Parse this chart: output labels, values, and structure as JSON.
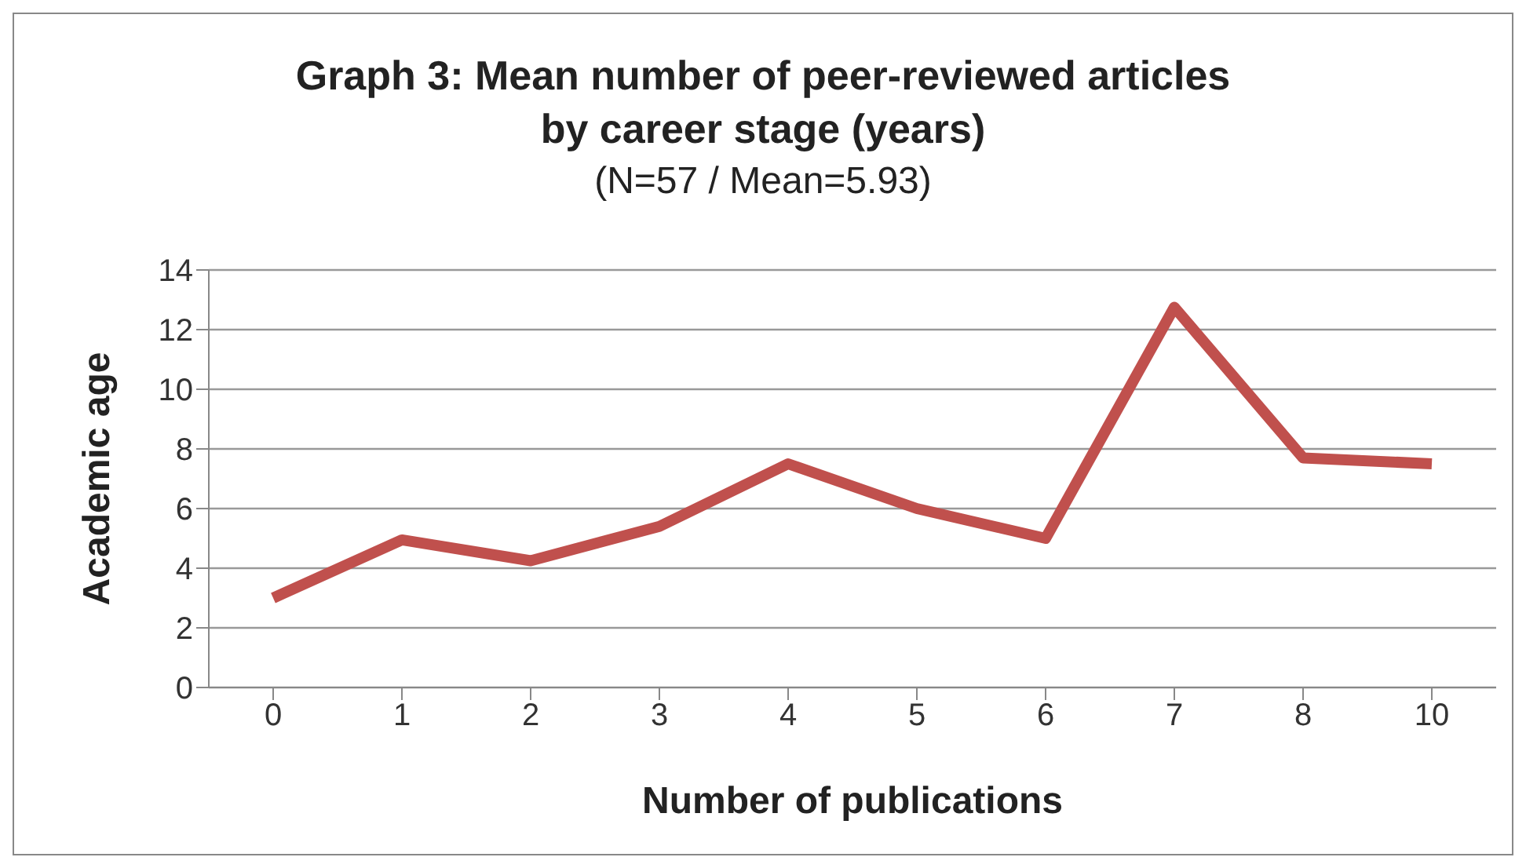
{
  "chart_data": {
    "type": "line",
    "title": "Graph 3: Mean number of peer-reviewed articles\nby career stage (years)",
    "subtitle": "(N=57 / Mean=5.93)",
    "xlabel": "Number of publications",
    "ylabel": "Academic age",
    "categories": [
      "0",
      "1",
      "2",
      "3",
      "4",
      "5",
      "6",
      "7",
      "8",
      "10"
    ],
    "series": [
      {
        "color": "#c0504d",
        "values": [
          3,
          4.95,
          4.25,
          5.4,
          7.5,
          6,
          5,
          12.75,
          7.7,
          7.5
        ]
      }
    ],
    "ylim": [
      0,
      14
    ],
    "yticks": [
      0,
      2,
      4,
      6,
      8,
      10,
      12,
      14
    ],
    "grid": "y",
    "legend": false,
    "marker": "none",
    "line_style": "solid"
  }
}
